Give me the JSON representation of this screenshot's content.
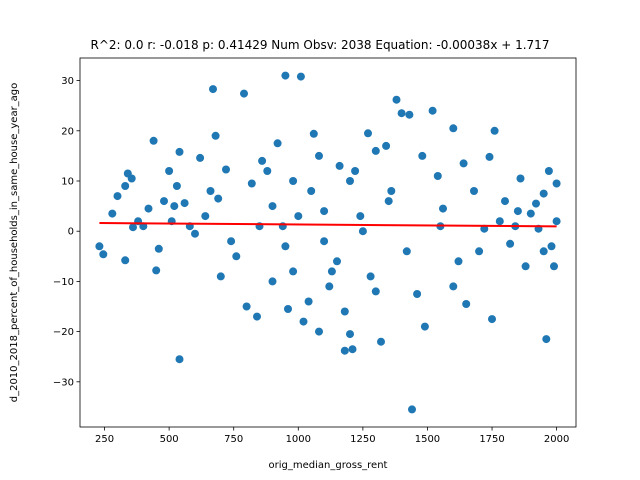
{
  "chart_data": {
    "type": "scatter",
    "title": "R^2: 0.0 r: -0.018 p: 0.41429 Num Obsv: 2038 Equation: -0.00038x + 1.717",
    "xlabel": "orig_median_gross_rent",
    "ylabel": "d_2010_2018_percent_of_households_in_same_house_year_ago",
    "xlim": [
      155,
      2075
    ],
    "ylim": [
      -39,
      34.5
    ],
    "xticks": [
      250,
      500,
      750,
      1000,
      1250,
      1500,
      1750,
      2000
    ],
    "yticks": [
      -30,
      -20,
      -10,
      0,
      10,
      20,
      30
    ],
    "xtick_labels": [
      "250",
      "500",
      "750",
      "1000",
      "1250",
      "1500",
      "1750",
      "2000"
    ],
    "ytick_labels": [
      "−30",
      "−20",
      "−10",
      "0",
      "10",
      "20",
      "30"
    ],
    "grid": false,
    "point_color": "#1f77b4",
    "line_color": "#ff0000",
    "regression": {
      "slope": -0.00038,
      "intercept": 1.717,
      "x_range": [
        230,
        2000
      ]
    },
    "series": [
      {
        "type": "scatter",
        "points": [
          [
            230,
            -3
          ],
          [
            245,
            -4.6
          ],
          [
            280,
            3.5
          ],
          [
            300,
            7
          ],
          [
            330,
            9
          ],
          [
            340,
            11.5
          ],
          [
            355,
            10.5
          ],
          [
            330,
            -5.8
          ],
          [
            360,
            0.8
          ],
          [
            380,
            2
          ],
          [
            400,
            1
          ],
          [
            420,
            4.5
          ],
          [
            440,
            18
          ],
          [
            450,
            -7.8
          ],
          [
            460,
            -3.5
          ],
          [
            480,
            6
          ],
          [
            500,
            12
          ],
          [
            510,
            2
          ],
          [
            520,
            5
          ],
          [
            530,
            9
          ],
          [
            540,
            15.8
          ],
          [
            540,
            -25.5
          ],
          [
            560,
            5.6
          ],
          [
            580,
            1
          ],
          [
            600,
            -0.5
          ],
          [
            620,
            14.6
          ],
          [
            640,
            3
          ],
          [
            660,
            8
          ],
          [
            670,
            28.3
          ],
          [
            680,
            19
          ],
          [
            690,
            6.5
          ],
          [
            700,
            -9
          ],
          [
            720,
            12.3
          ],
          [
            740,
            -2
          ],
          [
            760,
            -5
          ],
          [
            790,
            27.4
          ],
          [
            800,
            -15
          ],
          [
            820,
            9.5
          ],
          [
            840,
            -17
          ],
          [
            860,
            14
          ],
          [
            880,
            12
          ],
          [
            900,
            -10
          ],
          [
            920,
            17.5
          ],
          [
            940,
            1
          ],
          [
            950,
            31
          ],
          [
            960,
            -15.5
          ],
          [
            980,
            10
          ],
          [
            1010,
            30.8
          ],
          [
            1020,
            -18
          ],
          [
            1040,
            -14
          ],
          [
            1060,
            19.4
          ],
          [
            1080,
            -20
          ],
          [
            1100,
            4
          ],
          [
            1130,
            -8
          ],
          [
            1160,
            13
          ],
          [
            1180,
            -23.8
          ],
          [
            1200,
            -20.5
          ],
          [
            1210,
            -23.5
          ],
          [
            1240,
            3
          ],
          [
            1270,
            19.5
          ],
          [
            1300,
            16
          ],
          [
            1320,
            -22
          ],
          [
            1340,
            17
          ],
          [
            1360,
            8
          ],
          [
            1380,
            26.2
          ],
          [
            1400,
            23.5
          ],
          [
            1420,
            -4
          ],
          [
            1430,
            23.2
          ],
          [
            1440,
            -35.5
          ],
          [
            1460,
            -12.5
          ],
          [
            1480,
            15
          ],
          [
            1490,
            -19
          ],
          [
            1520,
            24
          ],
          [
            1540,
            11
          ],
          [
            1560,
            4.5
          ],
          [
            1600,
            20.5
          ],
          [
            1620,
            -6
          ],
          [
            1640,
            13.5
          ],
          [
            1650,
            -14.5
          ],
          [
            1680,
            8
          ],
          [
            1700,
            -4
          ],
          [
            1720,
            0.5
          ],
          [
            1740,
            14.8
          ],
          [
            1750,
            -17.5
          ],
          [
            1760,
            20
          ],
          [
            1780,
            2
          ],
          [
            1800,
            6
          ],
          [
            1820,
            -2.5
          ],
          [
            1840,
            1
          ],
          [
            1860,
            10.5
          ],
          [
            1880,
            -7
          ],
          [
            1900,
            3.5
          ],
          [
            1920,
            5.5
          ],
          [
            1950,
            7.5
          ],
          [
            1960,
            -21.5
          ],
          [
            1970,
            12
          ],
          [
            1980,
            -3
          ],
          [
            2000,
            2
          ],
          [
            2000,
            9.5
          ],
          [
            1990,
            -7
          ],
          [
            1950,
            -4
          ],
          [
            1930,
            0.5
          ],
          [
            1850,
            4
          ],
          [
            1600,
            -11
          ],
          [
            1550,
            1
          ],
          [
            1200,
            10
          ],
          [
            1100,
            -2
          ],
          [
            1000,
            3
          ],
          [
            900,
            5
          ],
          [
            1150,
            -6
          ],
          [
            1250,
            0
          ],
          [
            1050,
            8
          ],
          [
            950,
            -3
          ],
          [
            1300,
            -12
          ],
          [
            850,
            1
          ],
          [
            1350,
            6
          ],
          [
            1120,
            -11
          ],
          [
            980,
            -8
          ],
          [
            1220,
            12
          ],
          [
            1080,
            15
          ],
          [
            1180,
            -16
          ],
          [
            1280,
            -9
          ]
        ]
      }
    ]
  }
}
